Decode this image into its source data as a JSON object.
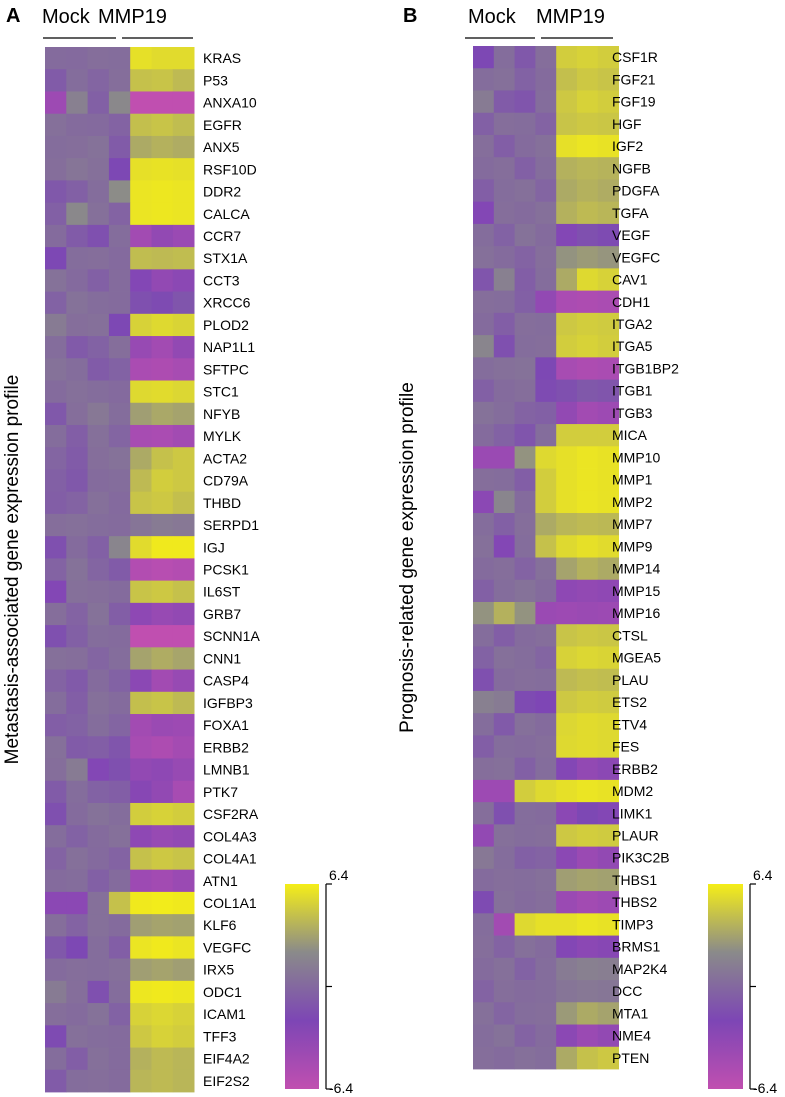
{
  "chart_data": [
    {
      "type": "heatmap",
      "panel": "A",
      "groups": [
        "Mock",
        "MMP19"
      ],
      "ylabel": "Metastasis-associated gene expression profile",
      "colorbar": {
        "max_label": "6.4",
        "min_label": "-6.4",
        "vmin": -6.4,
        "vmax": 6.4,
        "colors": [
          "#c04fb0",
          "#7d46b5",
          "#8a8a8a",
          "#f5ee18"
        ]
      },
      "rows": [
        "KRAS",
        "P53",
        "ANXA10",
        "EGFR",
        "ANX5",
        "RSF10D",
        "DDR2",
        "CALCA",
        "CCR7",
        "STX1A",
        "CCT3",
        "XRCC6",
        "PLOD2",
        "NAP1L1",
        "SFTPC",
        "STC1",
        "NFYB",
        "MYLK",
        "ACTA2",
        "CD79A",
        "THBD",
        "SERPD1",
        "IGJ",
        "PCSK1",
        "IL6ST",
        "GRB7",
        "SCNN1A",
        "CNN1",
        "CASP4",
        "IGFBP3",
        "FOXA1",
        "ERBB2",
        "LMNB1",
        "PTK7",
        "CSF2RA",
        "COL4A3",
        "COL4A1",
        "ATN1",
        "COL1A1",
        "KLF6",
        "VEGFC",
        "IRX5",
        "ODC1",
        "ICAM1",
        "TFF3",
        "EIF4A2",
        "EIF2S2"
      ],
      "values": [
        [
          0.2,
          0.1,
          0.4,
          0.3,
          5.8,
          5.6,
          5.6
        ],
        [
          -0.8,
          0.3,
          -0.2,
          0.4,
          4.5,
          4.6,
          4.2
        ],
        [
          -4.2,
          1.5,
          -0.5,
          2.0,
          -6.4,
          -6.4,
          -6.4
        ],
        [
          0.5,
          0.2,
          0.1,
          -0.3,
          4.4,
          4.6,
          4.3
        ],
        [
          0.3,
          0.4,
          0.6,
          -0.8,
          3.5,
          3.8,
          3.6
        ],
        [
          0.4,
          0.8,
          0.5,
          -2.0,
          5.8,
          5.9,
          5.8
        ],
        [
          -1.0,
          -0.5,
          0.3,
          2.2,
          6.0,
          6.1,
          6.0
        ],
        [
          -0.5,
          2.0,
          0.5,
          -0.3,
          6.0,
          6.1,
          6.0
        ],
        [
          0.2,
          -0.8,
          -1.5,
          0.3,
          -4.5,
          -3.5,
          -4.0
        ],
        [
          -2.0,
          0.3,
          0.4,
          0.1,
          4.3,
          4.2,
          4.3
        ],
        [
          0.6,
          0.1,
          -0.5,
          0.2,
          -2.5,
          -3.5,
          -3.0
        ],
        [
          -0.4,
          0.6,
          0.3,
          0.2,
          -1.5,
          -1.8,
          -1.2
        ],
        [
          1.2,
          0.4,
          0.5,
          -2.0,
          5.2,
          5.5,
          5.3
        ],
        [
          0.3,
          -0.9,
          -0.4,
          0.4,
          -3.8,
          -4.5,
          -3.5
        ],
        [
          0.6,
          0.3,
          -0.8,
          -0.4,
          -5.0,
          -5.2,
          -4.8
        ],
        [
          0.2,
          0.5,
          0.3,
          0.1,
          5.5,
          5.6,
          5.4
        ],
        [
          -1.0,
          0.4,
          1.0,
          0.3,
          3.0,
          3.4,
          3.2
        ],
        [
          0.3,
          -0.6,
          0.5,
          -0.2,
          -4.8,
          -5.0,
          -4.5
        ],
        [
          -0.2,
          -0.8,
          0.4,
          0.6,
          3.5,
          4.5,
          4.8
        ],
        [
          -0.5,
          -1.0,
          0.2,
          0.3,
          4.2,
          5.0,
          4.8
        ],
        [
          -0.6,
          -0.3,
          0.5,
          0.1,
          4.6,
          4.8,
          4.4
        ],
        [
          0.4,
          0.5,
          0.3,
          0.2,
          0.8,
          1.2,
          1.0
        ],
        [
          -1.5,
          0.2,
          -0.5,
          1.8,
          5.6,
          6.2,
          6.2
        ],
        [
          -0.3,
          0.6,
          -0.2,
          -0.8,
          -5.5,
          -5.8,
          -5.6
        ],
        [
          -2.5,
          0.5,
          0.4,
          0.2,
          4.6,
          4.8,
          4.5
        ],
        [
          0.4,
          -0.3,
          0.6,
          -0.6,
          -3.2,
          -3.8,
          -3.5
        ],
        [
          -1.5,
          -0.5,
          0.3,
          0.2,
          -6.4,
          -6.4,
          -6.4
        ],
        [
          0.5,
          0.4,
          -0.2,
          0.3,
          3.2,
          3.6,
          3.3
        ],
        [
          -0.3,
          -0.9,
          0.2,
          -0.4,
          -3.0,
          -4.5,
          -3.8
        ],
        [
          0.3,
          -0.6,
          0.5,
          0.2,
          4.4,
          4.6,
          4.2
        ],
        [
          -0.6,
          -0.4,
          0.3,
          -0.2,
          -4.5,
          -4.0,
          -4.2
        ],
        [
          0.5,
          -0.8,
          -0.6,
          -1.2,
          -4.8,
          -5.2,
          -4.6
        ],
        [
          0.4,
          1.2,
          -2.5,
          -1.5,
          -3.5,
          -3.2,
          -3.8
        ],
        [
          -0.8,
          0.3,
          -0.4,
          -0.6,
          -2.8,
          -3.5,
          -4.8
        ],
        [
          -1.5,
          0.2,
          0.6,
          0.3,
          5.0,
          5.2,
          5.0
        ],
        [
          0.3,
          -0.4,
          0.2,
          0.5,
          -3.2,
          -3.8,
          -3.5
        ],
        [
          -0.3,
          0.5,
          0.1,
          -0.3,
          4.5,
          4.8,
          4.6
        ],
        [
          0.2,
          0.3,
          -0.5,
          0.2,
          -4.2,
          -4.5,
          -4.0
        ],
        [
          -3.0,
          -3.0,
          0.5,
          4.5,
          6.2,
          6.3,
          6.2
        ],
        [
          0.4,
          -0.3,
          0.5,
          0.2,
          3.0,
          3.2,
          3.1
        ],
        [
          -1.0,
          -2.0,
          0.3,
          -0.6,
          6.0,
          6.2,
          6.0
        ],
        [
          0.2,
          0.4,
          0.3,
          0.5,
          3.0,
          3.2,
          3.0
        ],
        [
          1.2,
          0.4,
          -1.5,
          0.3,
          6.1,
          6.2,
          6.1
        ],
        [
          0.4,
          0.2,
          0.6,
          -0.4,
          5.2,
          5.4,
          5.2
        ],
        [
          -1.8,
          0.5,
          0.3,
          0.2,
          4.8,
          5.2,
          5.0
        ],
        [
          0.3,
          -0.6,
          0.5,
          0.2,
          3.8,
          4.2,
          4.0
        ],
        [
          -0.8,
          0.3,
          0.4,
          0.2,
          4.0,
          4.2,
          4.0
        ]
      ]
    },
    {
      "type": "heatmap",
      "panel": "B",
      "groups": [
        "Mock",
        "MMP19"
      ],
      "ylabel": "Prognosis-related gene expression profile",
      "colorbar": {
        "max_label": "6.4",
        "min_label": "-6.4",
        "vmin": -6.4,
        "vmax": 6.4,
        "colors": [
          "#c04fb0",
          "#7d46b5",
          "#8a8a8a",
          "#f5ee18"
        ]
      },
      "rows": [
        "CSF1R",
        "FGF21",
        "FGF19",
        "HGF",
        "IGF2",
        "NGFB",
        "PDGFA",
        "TGFA",
        "VEGF",
        "VEGFC",
        "CAV1",
        "CDH1",
        "ITGA2",
        "ITGA5",
        "ITGB1BP2",
        "ITGB1",
        "ITGB3",
        "MICA",
        "MMP10",
        "MMP1",
        "MMP2",
        "MMP7",
        "MMP9",
        "MMP14",
        "MMP15",
        "MMP16",
        "CTSL",
        "MGEA5",
        "PLAU",
        "ETS2",
        "ETV4",
        "FES",
        "ERBB2",
        "MDM2",
        "LIMK1",
        "PLAUR",
        "PIK3C2B",
        "THBS1",
        "THBS2",
        "TIMP3",
        "BRMS1",
        "MAP2K4",
        "DCC",
        "MTA1",
        "NME4",
        "PTEN"
      ],
      "values": [
        [
          -2.0,
          0.3,
          -1.0,
          0.4,
          5.0,
          5.2,
          5.0
        ],
        [
          0.3,
          0.5,
          -0.4,
          0.2,
          4.4,
          4.8,
          4.6
        ],
        [
          1.2,
          -0.8,
          -1.2,
          0.3,
          4.8,
          5.2,
          5.0
        ],
        [
          -0.5,
          0.4,
          0.3,
          -0.3,
          4.6,
          4.8,
          4.7
        ],
        [
          0.4,
          -0.6,
          0.2,
          0.5,
          5.8,
          6.0,
          5.9
        ],
        [
          0.2,
          0.4,
          -0.5,
          0.3,
          3.8,
          4.0,
          3.9
        ],
        [
          -0.6,
          0.3,
          0.5,
          -0.2,
          3.5,
          3.8,
          3.6
        ],
        [
          -2.5,
          0.4,
          0.2,
          0.5,
          3.8,
          4.2,
          4.0
        ],
        [
          0.3,
          -0.4,
          0.6,
          0.2,
          -2.5,
          -1.5,
          -1.8
        ],
        [
          0.5,
          0.2,
          -0.3,
          0.4,
          2.5,
          2.8,
          2.6
        ],
        [
          -1.2,
          1.5,
          -0.6,
          0.3,
          3.5,
          5.5,
          5.2
        ],
        [
          0.4,
          0.3,
          -0.5,
          -3.5,
          -5.0,
          -5.2,
          -5.0
        ],
        [
          0.2,
          -0.6,
          0.4,
          0.3,
          4.8,
          5.0,
          4.9
        ],
        [
          1.8,
          -1.5,
          0.3,
          0.4,
          5.0,
          5.2,
          5.0
        ],
        [
          0.3,
          0.5,
          0.6,
          -2.0,
          -4.8,
          -5.2,
          -5.0
        ],
        [
          -0.5,
          0.2,
          0.4,
          -1.8,
          -1.5,
          -1.0,
          -1.2
        ],
        [
          0.6,
          0.3,
          -0.3,
          -0.5,
          -3.5,
          -4.5,
          -4.2
        ],
        [
          0.2,
          -0.4,
          -1.2,
          0.3,
          5.0,
          5.0,
          5.0
        ],
        [
          -4.0,
          -4.0,
          2.5,
          5.5,
          5.8,
          6.0,
          5.9
        ],
        [
          0.4,
          0.3,
          -0.6,
          5.0,
          5.8,
          6.0,
          5.9
        ],
        [
          -3.0,
          1.8,
          0.2,
          5.0,
          5.8,
          6.0,
          5.9
        ],
        [
          0.3,
          -0.5,
          0.4,
          3.5,
          4.0,
          4.2,
          4.1
        ],
        [
          0.5,
          -2.5,
          0.3,
          4.5,
          5.5,
          5.8,
          5.6
        ],
        [
          0.2,
          0.4,
          -0.3,
          0.5,
          3.2,
          3.8,
          3.5
        ],
        [
          -0.5,
          0.3,
          0.6,
          0.2,
          -3.2,
          -3.5,
          -3.3
        ],
        [
          2.5,
          3.8,
          2.5,
          -4.0,
          -4.2,
          -4.0,
          -4.1
        ],
        [
          0.3,
          -0.6,
          0.2,
          0.4,
          4.6,
          4.8,
          4.7
        ],
        [
          -0.4,
          0.5,
          0.3,
          -0.2,
          5.2,
          5.4,
          5.3
        ],
        [
          -1.5,
          0.2,
          0.4,
          0.3,
          4.2,
          4.4,
          4.3
        ],
        [
          1.5,
          1.2,
          -1.8,
          -2.2,
          4.8,
          5.0,
          4.9
        ],
        [
          0.3,
          -0.9,
          0.5,
          0.2,
          5.4,
          5.6,
          5.5
        ],
        [
          -0.6,
          0.3,
          0.2,
          0.4,
          5.5,
          5.6,
          5.5
        ],
        [
          0.4,
          0.5,
          -0.5,
          0.3,
          -2.5,
          -3.5,
          -3.0
        ],
        [
          -4.2,
          -4.2,
          5.0,
          5.5,
          5.8,
          6.0,
          5.9
        ],
        [
          0.4,
          -1.5,
          0.3,
          0.2,
          -3.0,
          -2.0,
          -2.5
        ],
        [
          -3.5,
          0.5,
          0.3,
          0.4,
          4.8,
          5.0,
          4.9
        ],
        [
          1.0,
          0.3,
          -0.5,
          -0.3,
          -3.0,
          -4.0,
          -3.5
        ],
        [
          0.2,
          0.4,
          0.3,
          0.5,
          3.0,
          3.2,
          3.1
        ],
        [
          -1.8,
          0.5,
          0.2,
          0.4,
          -4.0,
          -4.5,
          -4.2
        ],
        [
          0.3,
          -4.5,
          5.5,
          5.8,
          5.8,
          6.0,
          5.9
        ],
        [
          0.4,
          -0.3,
          0.5,
          0.2,
          -2.5,
          -3.0,
          -2.8
        ],
        [
          0.2,
          0.5,
          -0.4,
          0.3,
          1.2,
          1.5,
          1.4
        ],
        [
          -0.3,
          0.4,
          0.2,
          0.3,
          0.8,
          1.0,
          0.9
        ],
        [
          0.5,
          -0.2,
          0.3,
          0.4,
          2.8,
          3.5,
          3.2
        ],
        [
          0.3,
          0.6,
          -0.3,
          0.2,
          -3.0,
          -4.0,
          -3.5
        ],
        [
          0.4,
          0.2,
          0.5,
          0.3,
          3.5,
          4.5,
          4.8
        ]
      ]
    }
  ]
}
